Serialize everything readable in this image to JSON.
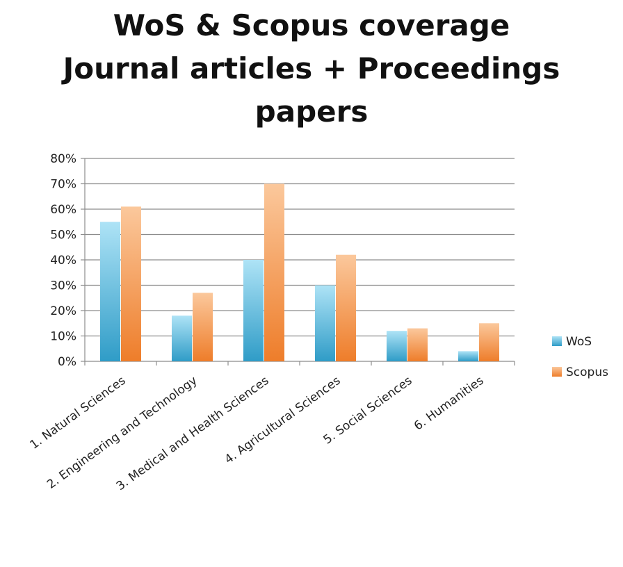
{
  "chart_data": {
    "type": "bar",
    "title_lines": [
      "WoS & Scopus coverage",
      "Journal articles + Proceedings",
      "papers"
    ],
    "categories": [
      "1. Natural Sciences",
      "2. Engineering and Technology",
      "3. Medical and Health Sciences",
      "4. Agricultural Sciences",
      "5. Social Sciences",
      "6. Humanities"
    ],
    "series": [
      {
        "name": "WoS",
        "values": [
          0.55,
          0.18,
          0.4,
          0.3,
          0.12,
          0.04
        ],
        "color_light": "#aee3f6",
        "color_dark": "#2f9cc7"
      },
      {
        "name": "Scopus",
        "values": [
          0.61,
          0.27,
          0.7,
          0.42,
          0.13,
          0.15
        ],
        "color_light": "#fbc89c",
        "color_dark": "#ee7d2a"
      }
    ],
    "yticks": [
      "0%",
      "10%",
      "20%",
      "30%",
      "40%",
      "50%",
      "60%",
      "70%",
      "80%"
    ],
    "ylim": [
      0,
      0.8
    ],
    "grid": true,
    "legend_position": "right"
  }
}
